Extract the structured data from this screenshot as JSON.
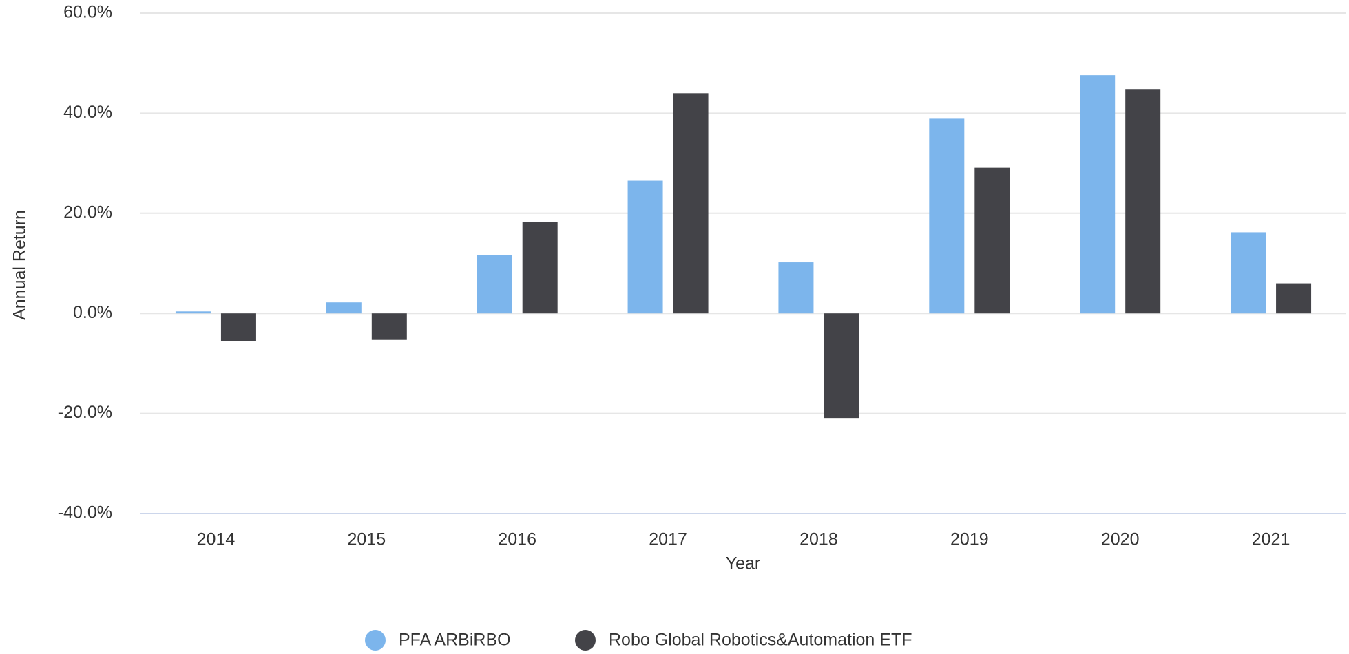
{
  "chart_data": {
    "type": "bar",
    "categories": [
      "2014",
      "2015",
      "2016",
      "2017",
      "2018",
      "2019",
      "2020",
      "2021"
    ],
    "series": [
      {
        "name": "PFA ARBiRBO",
        "color": "#7cb5ec",
        "values": [
          0.4,
          2.2,
          11.7,
          26.5,
          10.2,
          38.9,
          47.6,
          16.2
        ]
      },
      {
        "name": "Robo Global Robotics&Automation ETF",
        "color": "#434348",
        "values": [
          -5.6,
          -5.3,
          18.2,
          44.0,
          -20.9,
          29.1,
          44.7,
          6.0
        ]
      }
    ],
    "xlabel": "Year",
    "ylabel": "Annual Return",
    "ylim": [
      -40,
      60
    ],
    "yticks": [
      {
        "value": -40,
        "label": "-40.0%"
      },
      {
        "value": -20,
        "label": "-20.0%"
      },
      {
        "value": 0,
        "label": "0.0%"
      },
      {
        "value": 20,
        "label": "20.0%"
      },
      {
        "value": 40,
        "label": "40.0%"
      },
      {
        "value": 60,
        "label": "60.0%"
      }
    ],
    "grid": true,
    "legend": "bottom"
  }
}
